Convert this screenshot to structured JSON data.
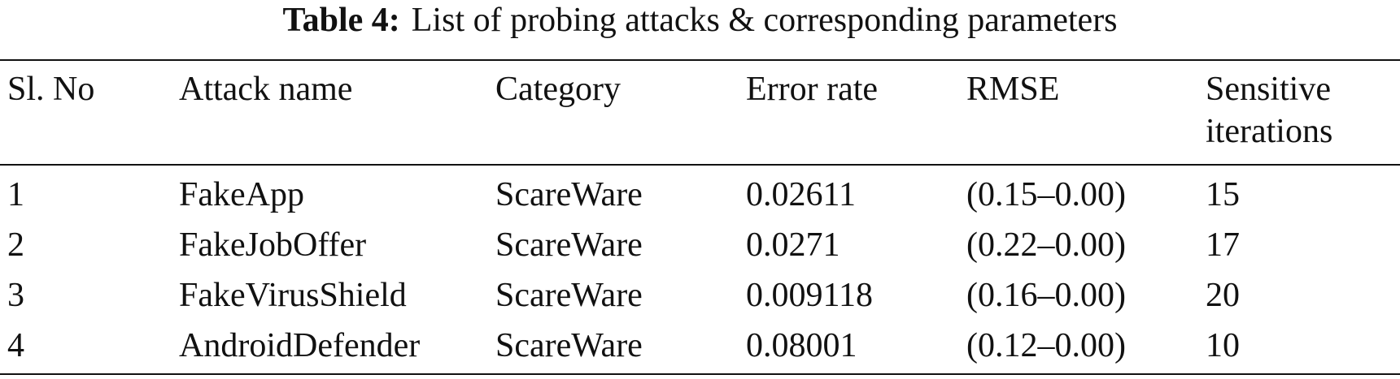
{
  "caption": {
    "label": "Table 4:",
    "text": "List of probing attacks & corresponding parameters"
  },
  "table": {
    "header": [
      "Sl. No",
      "Attack name",
      "Category",
      "Error rate",
      "RMSE",
      "Sensitive iterations"
    ],
    "rows": [
      [
        "1",
        "FakeApp",
        "ScareWare",
        "0.02611",
        "(0.15–0.00)",
        "15"
      ],
      [
        "2",
        "FakeJobOffer",
        "ScareWare",
        "0.0271",
        "(0.22–0.00)",
        "17"
      ],
      [
        "3",
        "FakeVirusShield",
        "ScareWare",
        "0.009118",
        "(0.16–0.00)",
        "20"
      ],
      [
        "4",
        "AndroidDefender",
        "ScareWare",
        "0.08001",
        "(0.12–0.00)",
        "10"
      ]
    ]
  }
}
